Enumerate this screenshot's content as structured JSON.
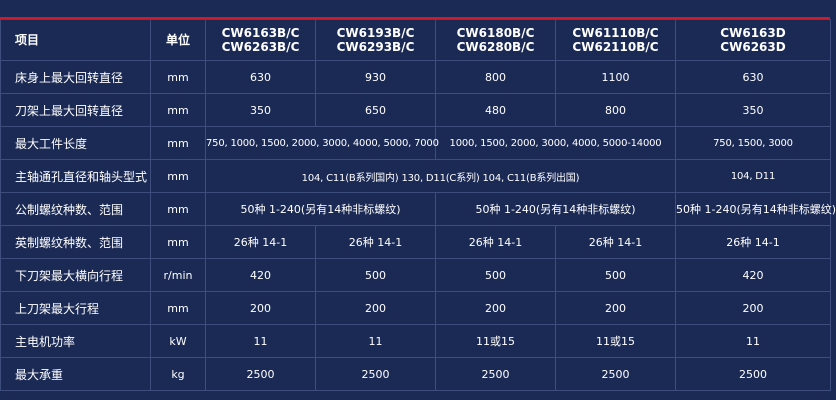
{
  "header": {
    "item": "项目",
    "unit": "单位",
    "models": [
      [
        "CW6163B/C",
        "CW6263B/C"
      ],
      [
        "CW6193B/C",
        "CW6293B/C"
      ],
      [
        "CW6180B/C",
        "CW6280B/C"
      ],
      [
        "CW61110B/C",
        "CW62110B/C"
      ],
      [
        "CW6163D",
        "CW6263D"
      ]
    ]
  },
  "rows": [
    {
      "label": "床身上最大回转直径",
      "unit": "mm",
      "values": [
        "630",
        "930",
        "800",
        "1100",
        "630"
      ]
    },
    {
      "label": "刀架上最大回转直径",
      "unit": "mm",
      "values": [
        "350",
        "650",
        "480",
        "800",
        "350"
      ]
    },
    {
      "label": "最大工件长度",
      "unit": "mm",
      "span_values": [
        "750, 1000, 1500, 2000, 3000, 4000, 5000, 7000",
        "1000, 1500, 2000, 3000, 4000, 5000-14000",
        "750, 1500, 3000"
      ]
    },
    {
      "label": "主轴通孔直径和轴头型式",
      "unit": "mm",
      "span_values": [
        "104, C11(B系列国内) 130, D11(C系列) 104, C11(B系列出国)",
        "104, D11"
      ]
    },
    {
      "label": "公制螺纹种数、范围",
      "unit": "mm",
      "span_values": [
        "50种 1-240(另有14种非标螺纹)",
        "50种 1-240(另有14种非标螺纹)",
        "50种 1-240(另有14种非标螺纹)"
      ]
    },
    {
      "label": "英制螺纹种数、范围",
      "unit": "mm",
      "values": [
        "26种 14-1",
        "26种 14-1",
        "26种 14-1",
        "26种 14-1",
        "26种 14-1"
      ]
    },
    {
      "label": "下刀架最大横向行程",
      "unit": "r/min",
      "values": [
        "420",
        "500",
        "500",
        "500",
        "420"
      ]
    },
    {
      "label": "上刀架最大行程",
      "unit": "mm",
      "values": [
        "200",
        "200",
        "200",
        "200",
        "200"
      ]
    },
    {
      "label": "主电机功率",
      "unit": "kW",
      "values": [
        "11",
        "11",
        "11或15",
        "11或15",
        "11"
      ]
    },
    {
      "label": "最大承重",
      "unit": "kg",
      "values": [
        "2500",
        "2500",
        "2500",
        "2500",
        "2500"
      ]
    }
  ]
}
